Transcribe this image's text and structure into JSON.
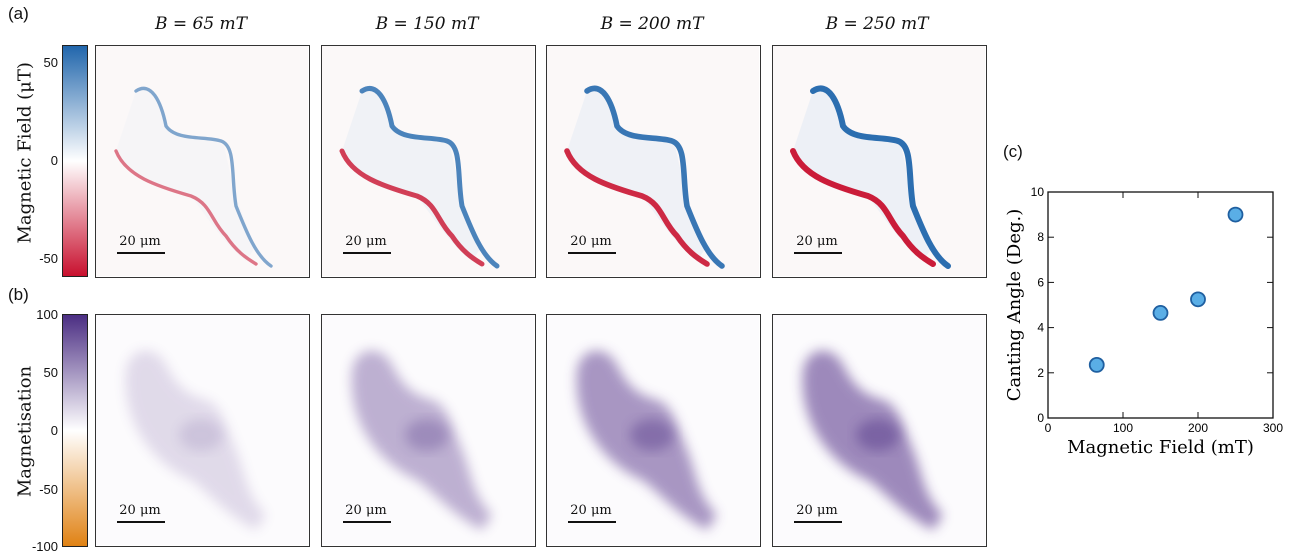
{
  "panel_labels": {
    "a": "(a)",
    "b": "(b)",
    "c": "(c)"
  },
  "columns": [
    "B = 65 mT",
    "B = 150 mT",
    "B = 200 mT",
    "B = 250 mT"
  ],
  "scale_bar_label": "20 μm",
  "colorbar_a": {
    "title": "Magnetic Field (μT)",
    "ticks": [
      "50",
      "0",
      "-50"
    ],
    "colors": {
      "top": "#2166ac",
      "mid": "#ffffff",
      "bottom": "#c8102e"
    }
  },
  "colorbar_b": {
    "title": "Magnetisation",
    "ticks": [
      "100",
      "50",
      "0",
      "-50",
      "-100"
    ],
    "colors": {
      "top": "#4b2e83",
      "mid": "#ffffff",
      "bottom": "#e08214"
    }
  },
  "field_intensity": [
    0.35,
    0.75,
    0.9,
    1.0
  ],
  "magnetisation_intensity": [
    0.25,
    0.55,
    0.75,
    0.85
  ],
  "chart_data": {
    "type": "scatter",
    "x": [
      65,
      150,
      200,
      250
    ],
    "y": [
      2.35,
      4.65,
      5.25,
      9.0
    ],
    "xlabel": "Magnetic Field (mT)",
    "ylabel": "Canting Angle (Deg.)",
    "xlim": [
      0,
      300
    ],
    "ylim": [
      0,
      10
    ],
    "xticks": [
      0,
      100,
      200,
      300
    ],
    "yticks": [
      0,
      2,
      4,
      6,
      8,
      10
    ],
    "marker_color": "#5aaee6",
    "marker_edge": "#1f5fa0"
  }
}
